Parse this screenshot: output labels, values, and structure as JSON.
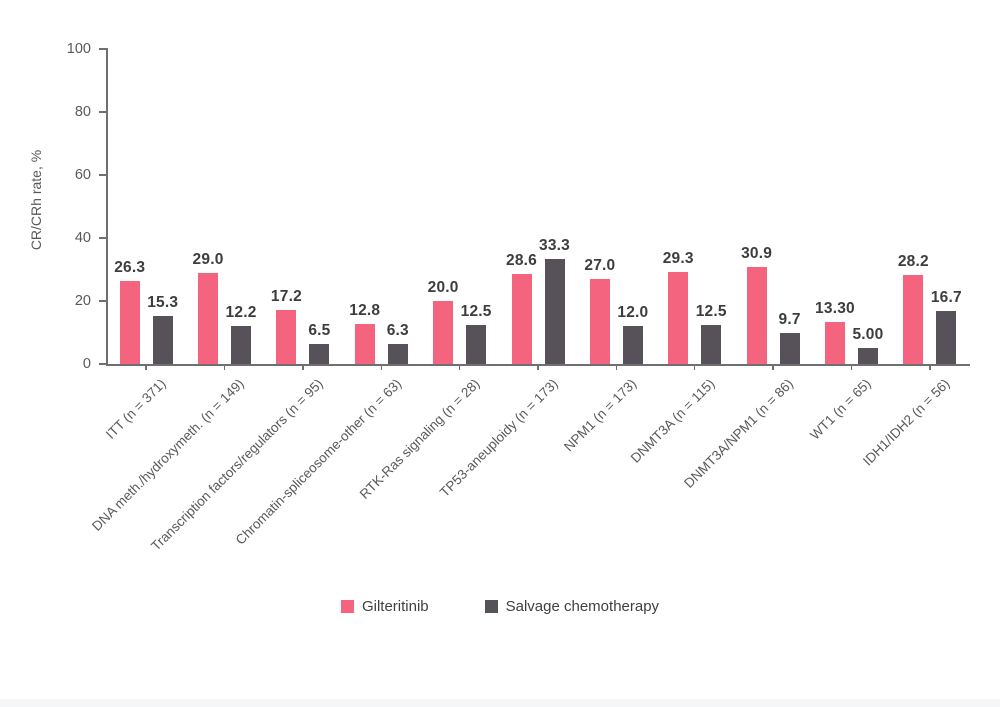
{
  "chart_data": {
    "type": "bar",
    "title": "",
    "ylabel": "CR/CRh rate, %",
    "xlabel": "",
    "ylim": [
      0,
      100
    ],
    "yticks": [
      0,
      20,
      40,
      60,
      80,
      100
    ],
    "grid": false,
    "legend_position": "bottom-center",
    "categories": [
      "ITT (n = 371)",
      "DNA meth./hydroxymeth. (n = 149)",
      "Transcription factors/regulators (n = 95)",
      "Chromatin-spliceosome-other (n = 63)",
      "RTK-Ras signaling (n = 28)",
      "TP53-aneuploidy (n = 173)",
      "NPM1 (n = 173)",
      "DNMT3A (n = 115)",
      "DNMT3A/NPM1 (n = 86)",
      "WT1 (n = 65)",
      "IDH1/IDH2 (n = 56)"
    ],
    "series": [
      {
        "name": "Gilteritinib",
        "color": "#f5647e",
        "values": [
          26.3,
          29.0,
          17.2,
          12.8,
          20.0,
          28.6,
          27.0,
          29.3,
          30.9,
          13.3,
          28.2
        ],
        "labels": [
          "26.3",
          "29.0",
          "17.2",
          "12.8",
          "20.0",
          "28.6",
          "27.0",
          "29.3",
          "30.9",
          "13.30",
          "28.2"
        ]
      },
      {
        "name": "Salvage chemotherapy",
        "color": "#57525a",
        "values": [
          15.3,
          12.2,
          6.5,
          6.3,
          12.5,
          33.3,
          12.0,
          12.5,
          9.7,
          5.0,
          16.7
        ],
        "labels": [
          "15.3",
          "12.2",
          "6.5",
          "6.3",
          "12.5",
          "33.3",
          "12.0",
          "12.5",
          "9.7",
          "5.00",
          "16.7"
        ]
      }
    ],
    "colors": {
      "axis": "#6f6f6f",
      "tick_text": "#595959",
      "value_text": "#3d3d3d"
    }
  }
}
